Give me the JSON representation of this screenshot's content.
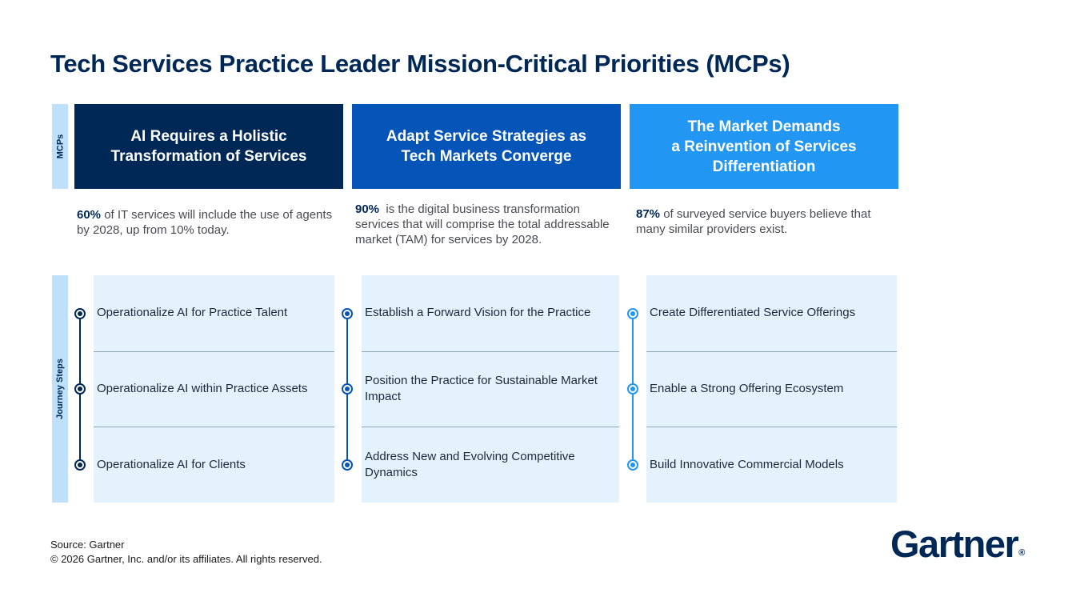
{
  "title": "Tech Services Practice Leader Mission-Critical Priorities (MCPs)",
  "side_labels": {
    "mcps": "MCPs",
    "journey": "Journey Steps"
  },
  "columns": [
    {
      "header_line1": "AI Requires a Holistic",
      "header_line2": "Transformation of Services",
      "stat_value": "60%",
      "stat_text": " of IT services will include the use of agents by 2028, up from 10% today.",
      "steps": [
        "Operationalize AI for Practice Talent",
        "Operationalize AI within Practice Assets",
        "Operationalize AI for Clients"
      ],
      "color": "#002856"
    },
    {
      "header_line1": "Adapt Service Strategies as",
      "header_line2": "Tech Markets Converge",
      "stat_value": "90%",
      "stat_text": "  is the digital business transformation services that will comprise the total addressable market (TAM) for services by 2028.",
      "steps": [
        "Establish a Forward Vision for the Practice",
        "Position the Practice for Sustainable Market Impact",
        "Address New and Evolving Competitive Dynamics"
      ],
      "color": "#0554b8"
    },
    {
      "header_line1": "The Market Demands",
      "header_line2": "a Reinvention of Services",
      "header_line3": "Differentiation",
      "stat_value": "87%",
      "stat_text": " of surveyed service buyers believe that many similar providers exist.",
      "steps": [
        "Create Differentiated Service Offerings",
        "Enable a Strong Offering Ecosystem",
        "Build Innovative Commercial Models"
      ],
      "color": "#2196f3"
    }
  ],
  "footer": {
    "source": "Source: Gartner",
    "copyright": "© 2026 Gartner, Inc. and/or its affiliates. All rights reserved."
  },
  "logo": {
    "text": "Gartner",
    "mark": "®"
  }
}
